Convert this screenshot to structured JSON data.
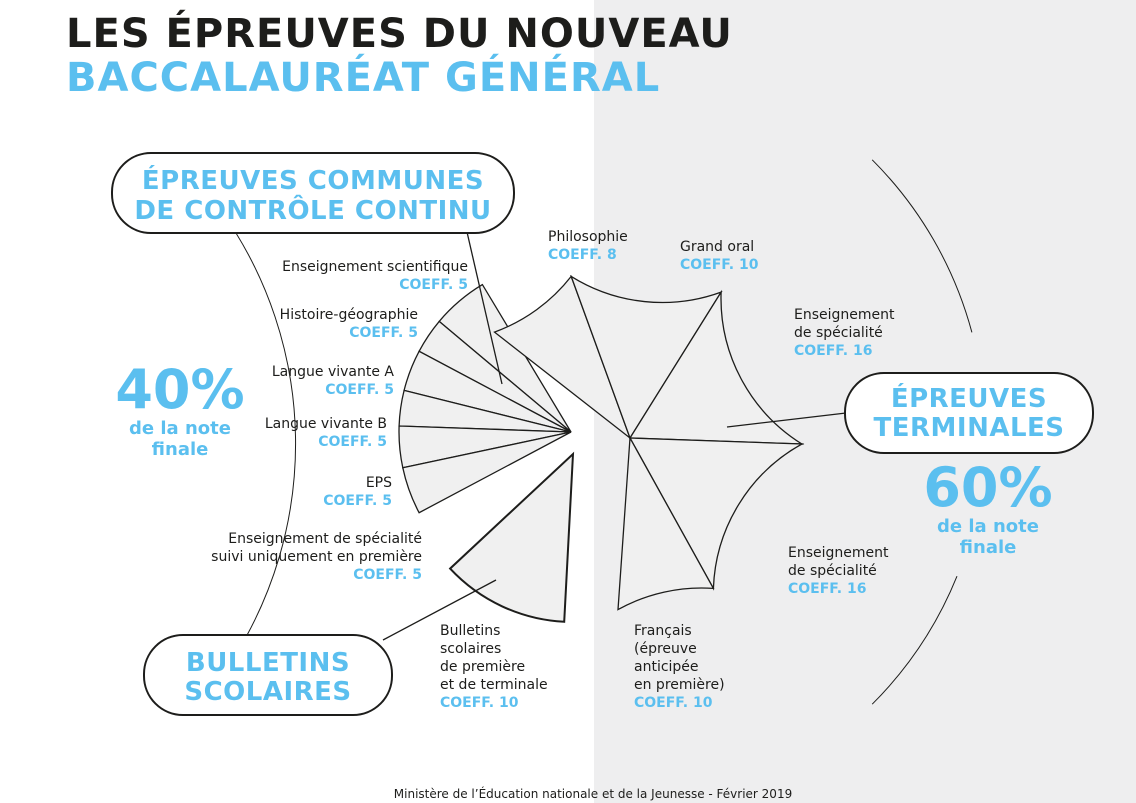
{
  "title_line1": "LES ÉPREUVES DU NOUVEAU",
  "title_line2": "BACCALAURÉAT GÉNÉRAL",
  "sections": {
    "ecc": {
      "line1": "ÉPREUVES COMMUNES",
      "line2": "DE CONTRÔLE CONTINU"
    },
    "bulletins": {
      "line1": "BULLETINS",
      "line2": "SCOLAIRES"
    },
    "terminales": {
      "line1": "ÉPREUVES",
      "line2": "TERMINALES"
    }
  },
  "left_pct": {
    "value": "40%",
    "line1": "de la note",
    "line2": "finale"
  },
  "right_pct": {
    "value": "60%",
    "line1": "de la note",
    "line2": "finale"
  },
  "labels": {
    "ens_sci": {
      "text": "Enseignement scientifique",
      "coeff": "COEFF. 5"
    },
    "hist_geo": {
      "text": "Histoire-géographie",
      "coeff": "COEFF. 5"
    },
    "lva": {
      "text": "Langue vivante A",
      "coeff": "COEFF. 5"
    },
    "lvb": {
      "text": "Langue vivante B",
      "coeff": "COEFF. 5"
    },
    "eps": {
      "text": "EPS",
      "coeff": "COEFF. 5"
    },
    "spe_premiere": {
      "line1": "Enseignement de spécialité",
      "line2": "suivi uniquement en première",
      "coeff": "COEFF. 5"
    },
    "bulletins": {
      "line1": "Bulletins",
      "line2": "scolaires",
      "line3": "de première",
      "line4": "et de terminale",
      "coeff": "COEFF. 10"
    },
    "philo": {
      "text": "Philosophie",
      "coeff": "COEFF. 8"
    },
    "grand_oral": {
      "text": "Grand oral",
      "coeff": "COEFF. 10"
    },
    "spe1": {
      "line1": "Enseignement",
      "line2": "de spécialité",
      "coeff": "COEFF. 16"
    },
    "spe2": {
      "line1": "Enseignement",
      "line2": "de spécialité",
      "coeff": "COEFF. 16"
    },
    "francais": {
      "line1": "Français",
      "line2": "(épreuve",
      "line3": "anticipée",
      "line4": "en première)",
      "coeff": "COEFF. 10"
    }
  },
  "footer": "Ministère de l’Éducation nationale et de la Jeunesse - Février 2019",
  "colors": {
    "accent": "#5bbfef",
    "dark": "#1d1d1b",
    "fill": "#f0f0f0",
    "right_bg": "#eeeeef"
  }
}
